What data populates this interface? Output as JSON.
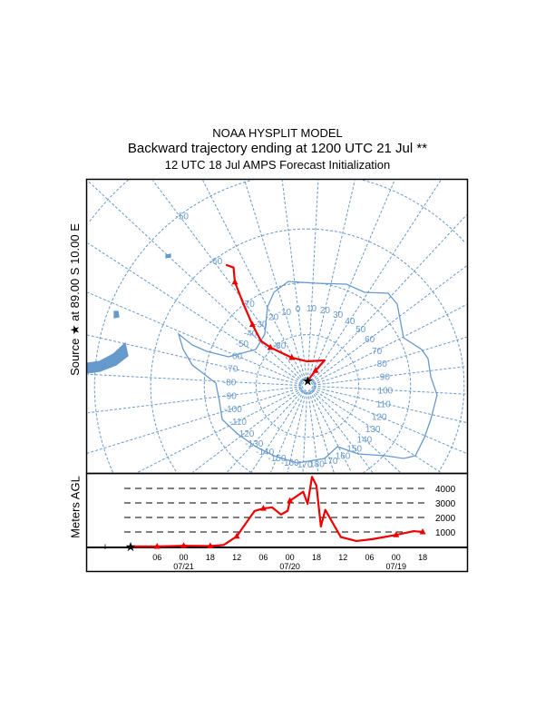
{
  "title": {
    "line1": "NOAA HYSPLIT MODEL",
    "line2": "Backward trajectory ending at 1200 UTC 21 Jul **",
    "line3": "12 UTC 18 Jul    AMPS  Forecast Initialization"
  },
  "source_label": "Source ★ at   89.00 S   10.00 E",
  "colors": {
    "trajectory": "#ee0000",
    "map": "#6699cc",
    "frame": "#000000"
  },
  "chart_data": [
    {
      "type": "map",
      "projection": "south polar stereographic",
      "source": {
        "lat": -89.0,
        "lon": 10.0
      },
      "lat_circles": [
        -50,
        -60,
        -70,
        -80
      ],
      "lat_labels": [
        "-50",
        "-60",
        "-70",
        "-80"
      ],
      "lon_labels": [
        -170,
        -160,
        -150,
        -140,
        -130,
        -120,
        -110,
        -100,
        -90,
        -80,
        -70,
        -60,
        -50,
        -40,
        -30,
        -20,
        -10,
        0,
        10,
        20,
        30,
        40,
        50,
        60,
        70,
        80,
        90,
        100,
        110,
        120,
        130,
        140,
        150,
        160,
        170,
        180
      ],
      "trajectory": [
        {
          "lat": -89.0,
          "lon": 10,
          "marker": false
        },
        {
          "lat": -86.6,
          "lon": 35,
          "marker": true
        },
        {
          "lat": -84.0,
          "lon": 41,
          "marker": false
        },
        {
          "lat": -85.2,
          "lon": 5,
          "marker": false
        },
        {
          "lat": -83.7,
          "lon": -22,
          "marker": true
        },
        {
          "lat": -79.6,
          "lon": -37,
          "marker": true
        },
        {
          "lat": -77.4,
          "lon": -39,
          "marker": false
        },
        {
          "lat": -74.0,
          "lon": -35,
          "marker": true
        },
        {
          "lat": -69.8,
          "lon": -31,
          "marker": false
        },
        {
          "lat": -65.6,
          "lon": -28,
          "marker": true
        },
        {
          "lat": -63.2,
          "lon": -25,
          "marker": false
        },
        {
          "lat": -62.0,
          "lon": -27,
          "marker": false
        }
      ]
    },
    {
      "type": "line",
      "ylabel": "Meters AGL",
      "ylim": [
        0,
        5000
      ],
      "yticks": [
        "1000",
        "2000",
        "3000",
        "4000"
      ],
      "grid": true,
      "xticks": [
        {
          "time": "07/21 06:00",
          "label": "06",
          "date": ""
        },
        {
          "time": "07/21 00:00",
          "label": "00",
          "date": "07/21"
        },
        {
          "time": "07/20 18:00",
          "label": "18",
          "date": ""
        },
        {
          "time": "07/20 12:00",
          "label": "12",
          "date": ""
        },
        {
          "time": "07/20 06:00",
          "label": "06",
          "date": ""
        },
        {
          "time": "07/20 00:00",
          "label": "00",
          "date": "07/20"
        },
        {
          "time": "07/19 18:00",
          "label": "18",
          "date": ""
        },
        {
          "time": "07/19 12:00",
          "label": "12",
          "date": ""
        },
        {
          "time": "07/19 06:00",
          "label": "06",
          "date": ""
        },
        {
          "time": "07/19 00:00",
          "label": "00",
          "date": "07/19"
        },
        {
          "time": "07/18 18:00",
          "label": "18",
          "date": ""
        }
      ],
      "series": [
        {
          "points": [
            {
              "t": "07/21 12:00",
              "m": 0
            },
            {
              "t": "07/21 06:00",
              "m": 0
            },
            {
              "t": "07/21 00:00",
              "m": 50
            },
            {
              "t": "07/20 18:00",
              "m": 30
            },
            {
              "t": "07/20 15:00",
              "m": 100
            },
            {
              "t": "07/20 12:00",
              "m": 700
            },
            {
              "t": "07/20 10:00",
              "m": 1580
            },
            {
              "t": "07/20 08:00",
              "m": 2440
            },
            {
              "t": "07/20 06:00",
              "m": 2620
            },
            {
              "t": "07/20 04:00",
              "m": 2690
            },
            {
              "t": "07/20 02:00",
              "m": 2200
            },
            {
              "t": "07/20 00:30",
              "m": 2460
            },
            {
              "t": "07/20 00:00",
              "m": 3150
            },
            {
              "t": "07/19 21:00",
              "m": 3770
            },
            {
              "t": "07/19 20:00",
              "m": 2940
            },
            {
              "t": "07/19 19:00",
              "m": 4800
            },
            {
              "t": "07/19 18:00",
              "m": 4190
            },
            {
              "t": "07/19 17:00",
              "m": 1380
            },
            {
              "t": "07/19 16:00",
              "m": 2520
            },
            {
              "t": "07/19 12:30",
              "m": 650
            },
            {
              "t": "07/19 09:00",
              "m": 380
            },
            {
              "t": "07/19 05:30",
              "m": 500
            },
            {
              "t": "07/19 00:00",
              "m": 800
            },
            {
              "t": "07/18 20:00",
              "m": 1060
            },
            {
              "t": "07/18 18:00",
              "m": 1000
            }
          ],
          "markers": [
            "07/21 06:00",
            "07/21 00:00",
            "07/20 18:00",
            "07/20 12:00",
            "07/20 06:00",
            "07/20 00:00",
            "07/19 12:00",
            "07/19 06:00",
            "07/19 00:00",
            "07/18 18:00"
          ]
        }
      ]
    }
  ]
}
